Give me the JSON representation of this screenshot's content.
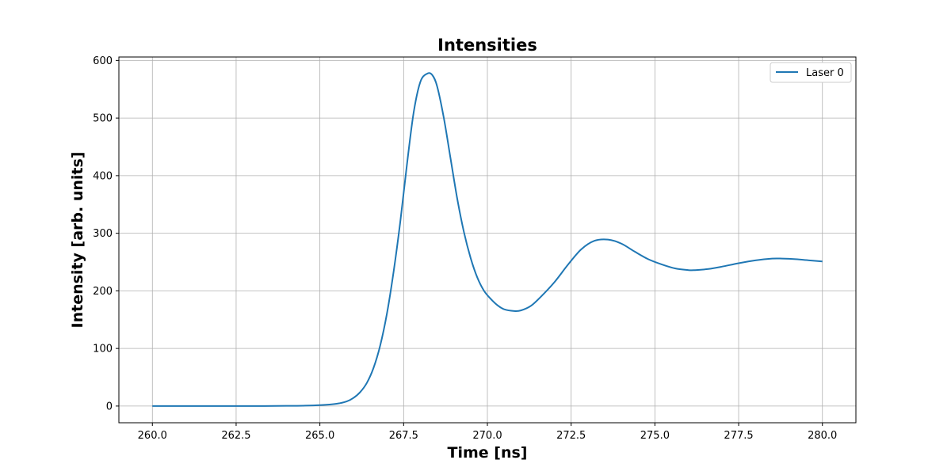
{
  "chart_data": {
    "type": "line",
    "title": "Intensities",
    "xlabel": "Time [ns]",
    "ylabel": "Intensity [arb. units]",
    "xlim": [
      259,
      281
    ],
    "ylim": [
      -29,
      606
    ],
    "xticks": [
      260.0,
      262.5,
      265.0,
      267.5,
      270.0,
      272.5,
      275.0,
      277.5,
      280.0
    ],
    "xtick_labels": [
      "260.0",
      "262.5",
      "265.0",
      "267.5",
      "270.0",
      "272.5",
      "275.0",
      "277.5",
      "280.0"
    ],
    "yticks": [
      0,
      100,
      200,
      300,
      400,
      500,
      600
    ],
    "ytick_labels": [
      "0",
      "100",
      "200",
      "300",
      "400",
      "500",
      "600"
    ],
    "grid": true,
    "legend_position": "top-right",
    "series": [
      {
        "name": "Laser 0",
        "color": "#1f77b4",
        "x": [
          260.0,
          261.0,
          262.0,
          263.0,
          264.0,
          264.5,
          265.0,
          265.5,
          265.8,
          266.0,
          266.2,
          266.4,
          266.6,
          266.8,
          267.0,
          267.2,
          267.4,
          267.6,
          267.8,
          268.0,
          268.2,
          268.35,
          268.5,
          268.7,
          268.9,
          269.1,
          269.3,
          269.5,
          269.7,
          269.9,
          270.1,
          270.3,
          270.5,
          270.8,
          271.0,
          271.3,
          271.6,
          272.0,
          272.4,
          272.8,
          273.2,
          273.6,
          274.0,
          274.4,
          274.8,
          275.2,
          275.6,
          276.0,
          276.2,
          276.6,
          277.0,
          277.5,
          278.0,
          278.5,
          278.8,
          279.2,
          279.6,
          280.0
        ],
        "values": [
          0,
          0,
          0,
          0,
          0.3,
          0.6,
          1.5,
          4,
          8,
          14,
          24,
          40,
          66,
          105,
          160,
          233,
          320,
          420,
          510,
          563,
          577,
          575,
          555,
          500,
          430,
          360,
          302,
          257,
          223,
          200,
          186,
          175,
          168,
          165,
          166,
          174,
          190,
          215,
          245,
          272,
          287,
          289,
          282,
          268,
          255,
          246,
          239,
          236,
          236,
          238,
          242,
          248,
          253,
          256,
          256,
          255,
          253,
          251
        ]
      }
    ]
  }
}
